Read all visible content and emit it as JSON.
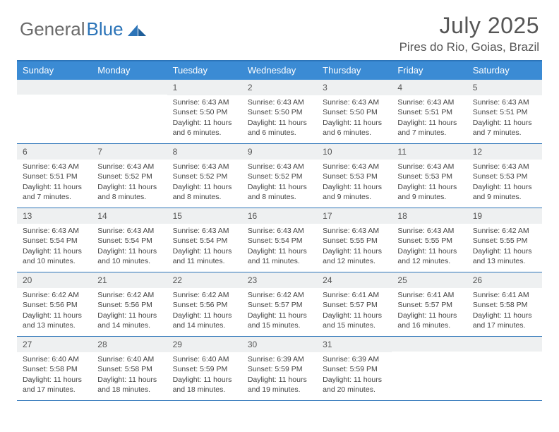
{
  "brand": {
    "part1": "General",
    "part2": "Blue"
  },
  "title": "July 2025",
  "location": "Pires do Rio, Goias, Brazil",
  "colors": {
    "header_bar": "#3b8bd4",
    "border": "#2c74b8",
    "daynum_bg": "#eef0f1",
    "text": "#444444",
    "title_text": "#555555"
  },
  "day_names": [
    "Sunday",
    "Monday",
    "Tuesday",
    "Wednesday",
    "Thursday",
    "Friday",
    "Saturday"
  ],
  "weeks": [
    [
      {
        "day": "",
        "lines": []
      },
      {
        "day": "",
        "lines": []
      },
      {
        "day": "1",
        "lines": [
          "Sunrise: 6:43 AM",
          "Sunset: 5:50 PM",
          "Daylight: 11 hours and 6 minutes."
        ]
      },
      {
        "day": "2",
        "lines": [
          "Sunrise: 6:43 AM",
          "Sunset: 5:50 PM",
          "Daylight: 11 hours and 6 minutes."
        ]
      },
      {
        "day": "3",
        "lines": [
          "Sunrise: 6:43 AM",
          "Sunset: 5:50 PM",
          "Daylight: 11 hours and 6 minutes."
        ]
      },
      {
        "day": "4",
        "lines": [
          "Sunrise: 6:43 AM",
          "Sunset: 5:51 PM",
          "Daylight: 11 hours and 7 minutes."
        ]
      },
      {
        "day": "5",
        "lines": [
          "Sunrise: 6:43 AM",
          "Sunset: 5:51 PM",
          "Daylight: 11 hours and 7 minutes."
        ]
      }
    ],
    [
      {
        "day": "6",
        "lines": [
          "Sunrise: 6:43 AM",
          "Sunset: 5:51 PM",
          "Daylight: 11 hours and 7 minutes."
        ]
      },
      {
        "day": "7",
        "lines": [
          "Sunrise: 6:43 AM",
          "Sunset: 5:52 PM",
          "Daylight: 11 hours and 8 minutes."
        ]
      },
      {
        "day": "8",
        "lines": [
          "Sunrise: 6:43 AM",
          "Sunset: 5:52 PM",
          "Daylight: 11 hours and 8 minutes."
        ]
      },
      {
        "day": "9",
        "lines": [
          "Sunrise: 6:43 AM",
          "Sunset: 5:52 PM",
          "Daylight: 11 hours and 8 minutes."
        ]
      },
      {
        "day": "10",
        "lines": [
          "Sunrise: 6:43 AM",
          "Sunset: 5:53 PM",
          "Daylight: 11 hours and 9 minutes."
        ]
      },
      {
        "day": "11",
        "lines": [
          "Sunrise: 6:43 AM",
          "Sunset: 5:53 PM",
          "Daylight: 11 hours and 9 minutes."
        ]
      },
      {
        "day": "12",
        "lines": [
          "Sunrise: 6:43 AM",
          "Sunset: 5:53 PM",
          "Daylight: 11 hours and 9 minutes."
        ]
      }
    ],
    [
      {
        "day": "13",
        "lines": [
          "Sunrise: 6:43 AM",
          "Sunset: 5:54 PM",
          "Daylight: 11 hours and 10 minutes."
        ]
      },
      {
        "day": "14",
        "lines": [
          "Sunrise: 6:43 AM",
          "Sunset: 5:54 PM",
          "Daylight: 11 hours and 10 minutes."
        ]
      },
      {
        "day": "15",
        "lines": [
          "Sunrise: 6:43 AM",
          "Sunset: 5:54 PM",
          "Daylight: 11 hours and 11 minutes."
        ]
      },
      {
        "day": "16",
        "lines": [
          "Sunrise: 6:43 AM",
          "Sunset: 5:54 PM",
          "Daylight: 11 hours and 11 minutes."
        ]
      },
      {
        "day": "17",
        "lines": [
          "Sunrise: 6:43 AM",
          "Sunset: 5:55 PM",
          "Daylight: 11 hours and 12 minutes."
        ]
      },
      {
        "day": "18",
        "lines": [
          "Sunrise: 6:43 AM",
          "Sunset: 5:55 PM",
          "Daylight: 11 hours and 12 minutes."
        ]
      },
      {
        "day": "19",
        "lines": [
          "Sunrise: 6:42 AM",
          "Sunset: 5:55 PM",
          "Daylight: 11 hours and 13 minutes."
        ]
      }
    ],
    [
      {
        "day": "20",
        "lines": [
          "Sunrise: 6:42 AM",
          "Sunset: 5:56 PM",
          "Daylight: 11 hours and 13 minutes."
        ]
      },
      {
        "day": "21",
        "lines": [
          "Sunrise: 6:42 AM",
          "Sunset: 5:56 PM",
          "Daylight: 11 hours and 14 minutes."
        ]
      },
      {
        "day": "22",
        "lines": [
          "Sunrise: 6:42 AM",
          "Sunset: 5:56 PM",
          "Daylight: 11 hours and 14 minutes."
        ]
      },
      {
        "day": "23",
        "lines": [
          "Sunrise: 6:42 AM",
          "Sunset: 5:57 PM",
          "Daylight: 11 hours and 15 minutes."
        ]
      },
      {
        "day": "24",
        "lines": [
          "Sunrise: 6:41 AM",
          "Sunset: 5:57 PM",
          "Daylight: 11 hours and 15 minutes."
        ]
      },
      {
        "day": "25",
        "lines": [
          "Sunrise: 6:41 AM",
          "Sunset: 5:57 PM",
          "Daylight: 11 hours and 16 minutes."
        ]
      },
      {
        "day": "26",
        "lines": [
          "Sunrise: 6:41 AM",
          "Sunset: 5:58 PM",
          "Daylight: 11 hours and 17 minutes."
        ]
      }
    ],
    [
      {
        "day": "27",
        "lines": [
          "Sunrise: 6:40 AM",
          "Sunset: 5:58 PM",
          "Daylight: 11 hours and 17 minutes."
        ]
      },
      {
        "day": "28",
        "lines": [
          "Sunrise: 6:40 AM",
          "Sunset: 5:58 PM",
          "Daylight: 11 hours and 18 minutes."
        ]
      },
      {
        "day": "29",
        "lines": [
          "Sunrise: 6:40 AM",
          "Sunset: 5:59 PM",
          "Daylight: 11 hours and 18 minutes."
        ]
      },
      {
        "day": "30",
        "lines": [
          "Sunrise: 6:39 AM",
          "Sunset: 5:59 PM",
          "Daylight: 11 hours and 19 minutes."
        ]
      },
      {
        "day": "31",
        "lines": [
          "Sunrise: 6:39 AM",
          "Sunset: 5:59 PM",
          "Daylight: 11 hours and 20 minutes."
        ]
      },
      {
        "day": "",
        "lines": []
      },
      {
        "day": "",
        "lines": []
      }
    ]
  ]
}
